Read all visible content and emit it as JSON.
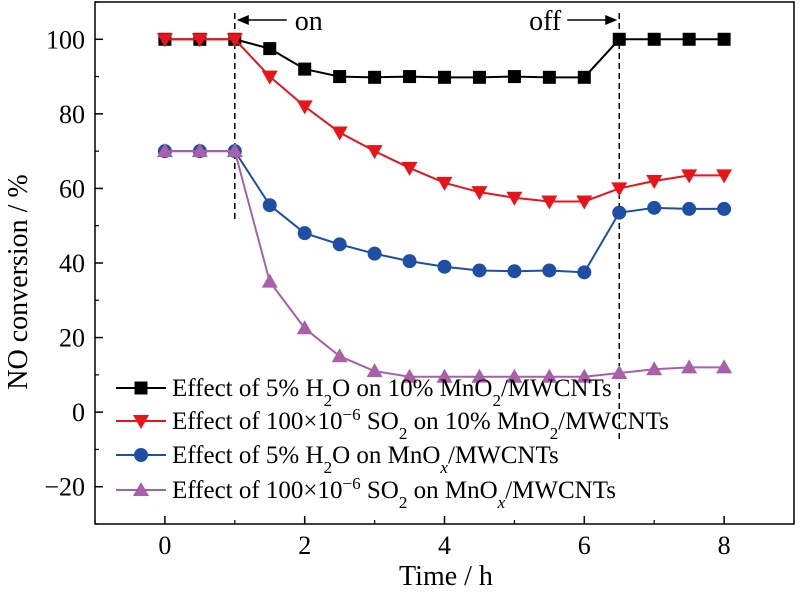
{
  "chart_data": {
    "type": "line",
    "title": "",
    "xlabel": "Time / h",
    "ylabel": "NO conversion / %",
    "xlim": [
      -1,
      9
    ],
    "ylim": [
      -30,
      110
    ],
    "xticks": [
      0,
      2,
      4,
      6,
      8
    ],
    "yticks": [
      -20,
      0,
      20,
      40,
      60,
      80,
      100
    ],
    "grid": false,
    "legend_position": "bottom-left",
    "annotations": [
      {
        "text": "on",
        "x": 1.0
      },
      {
        "text": "off",
        "x": 6.5
      }
    ],
    "series": [
      {
        "name": "Effect of 5% H2O on 10% MnO2/MWCNTs",
        "legend_parts": [
          "Effect of 5% H",
          "2",
          "O on 10% MnO",
          "2",
          "/MWCNTs"
        ],
        "color": "#000000",
        "marker": "square",
        "x": [
          0,
          0.5,
          1.0,
          1.5,
          2.0,
          2.5,
          3.0,
          3.5,
          4.0,
          4.5,
          5.0,
          5.5,
          6.0,
          6.5,
          7.0,
          7.5,
          8.0
        ],
        "y": [
          100,
          100,
          100,
          97.5,
          92,
          90,
          89.8,
          90,
          89.8,
          89.8,
          90,
          89.8,
          89.8,
          100,
          100,
          100,
          100
        ]
      },
      {
        "name": "Effect of 100×10−6 SO2 on 10% MnO2/MWCNTs",
        "legend_parts": [
          "Effect of 100×10",
          "−6",
          " SO",
          "2",
          " on 10% MnO",
          "2",
          "/MWCNTs"
        ],
        "color": "#e8141a",
        "marker": "triangle-down",
        "x": [
          0,
          0.5,
          1.0,
          1.5,
          2.0,
          2.5,
          3.0,
          3.5,
          4.0,
          4.5,
          5.0,
          5.5,
          6.0,
          6.5,
          7.0,
          7.5,
          8.0
        ],
        "y": [
          100,
          100,
          100,
          90,
          82,
          75,
          70,
          65.5,
          61.5,
          59,
          57.5,
          56.5,
          56.5,
          60,
          62,
          63.5,
          63.5
        ]
      },
      {
        "name": "Effect of 5% H2O on MnOx/MWCNTs",
        "legend_parts": [
          "Effect of 5% H",
          "2",
          "O on  MnO",
          "x",
          "/MWCNTs"
        ],
        "color": "#1f4fa5",
        "marker": "circle",
        "x": [
          0,
          0.5,
          1.0,
          1.5,
          2.0,
          2.5,
          3.0,
          3.5,
          4.0,
          4.5,
          5.0,
          5.5,
          6.0,
          6.5,
          7.0,
          7.5,
          8.0
        ],
        "y": [
          70,
          70,
          70,
          55.5,
          48,
          45,
          42.5,
          40.5,
          39,
          38,
          37.8,
          38,
          37.5,
          53.5,
          54.8,
          54.5,
          54.5
        ]
      },
      {
        "name": "Effect of 100×10−6 SO2 on MnOx/MWCNTs",
        "legend_parts": [
          "Effect of 100×10",
          "−6",
          " SO",
          "2",
          "  on  MnO",
          "x",
          "/MWCNTs"
        ],
        "color": "#a860a8",
        "marker": "triangle-up",
        "x": [
          0,
          0.5,
          1.0,
          1.5,
          2.0,
          2.5,
          3.0,
          3.5,
          4.0,
          4.5,
          5.0,
          5.5,
          6.0,
          6.5,
          7.0,
          7.5,
          8.0
        ],
        "y": [
          70,
          70,
          70,
          35,
          22.5,
          15,
          11,
          9.5,
          9.5,
          9.5,
          9.5,
          9.5,
          9.5,
          10.5,
          11.5,
          12,
          12
        ]
      }
    ]
  }
}
